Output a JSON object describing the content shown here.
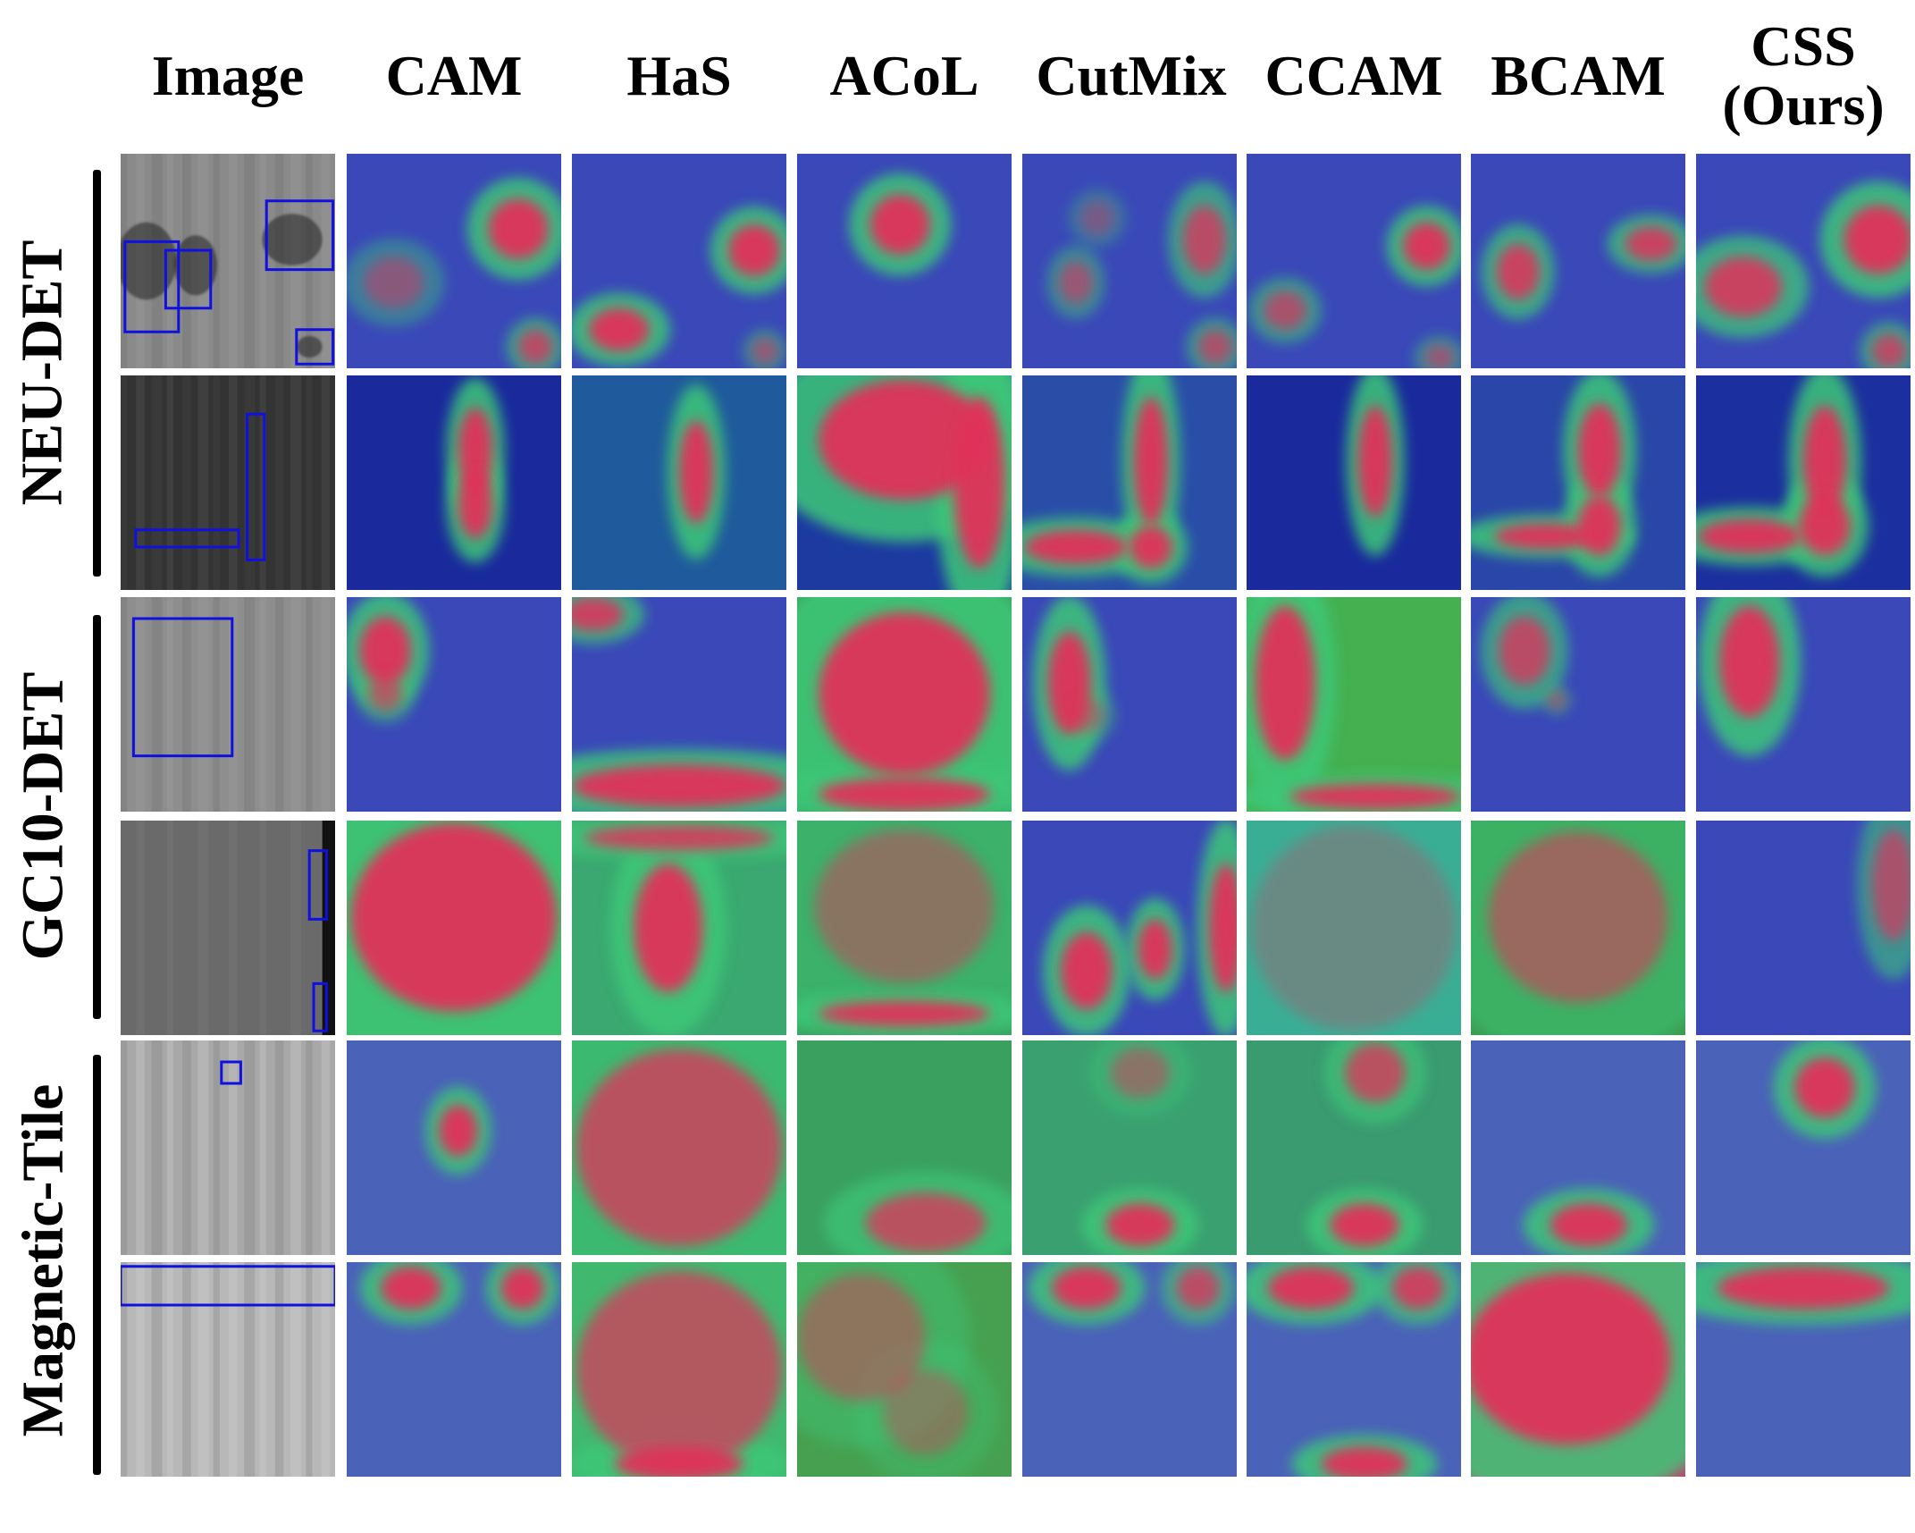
{
  "columns": [
    "Image",
    "CAM",
    "HaS",
    "ACoL",
    "CutMix",
    "CCAM",
    "BCAM",
    "CSS\n(Ours)"
  ],
  "groups": [
    {
      "label": "NEU-DET",
      "rows": [
        0,
        1
      ]
    },
    {
      "label": "GC10-DET",
      "rows": [
        2,
        3
      ]
    },
    {
      "label": "Magnetic-Tile",
      "rows": [
        4,
        5
      ]
    }
  ],
  "colors": {
    "box": "#1010e0",
    "heat_low": "#2a2aa8",
    "heat_mid": "#3cc878",
    "heat_high": "#e0305a"
  }
}
